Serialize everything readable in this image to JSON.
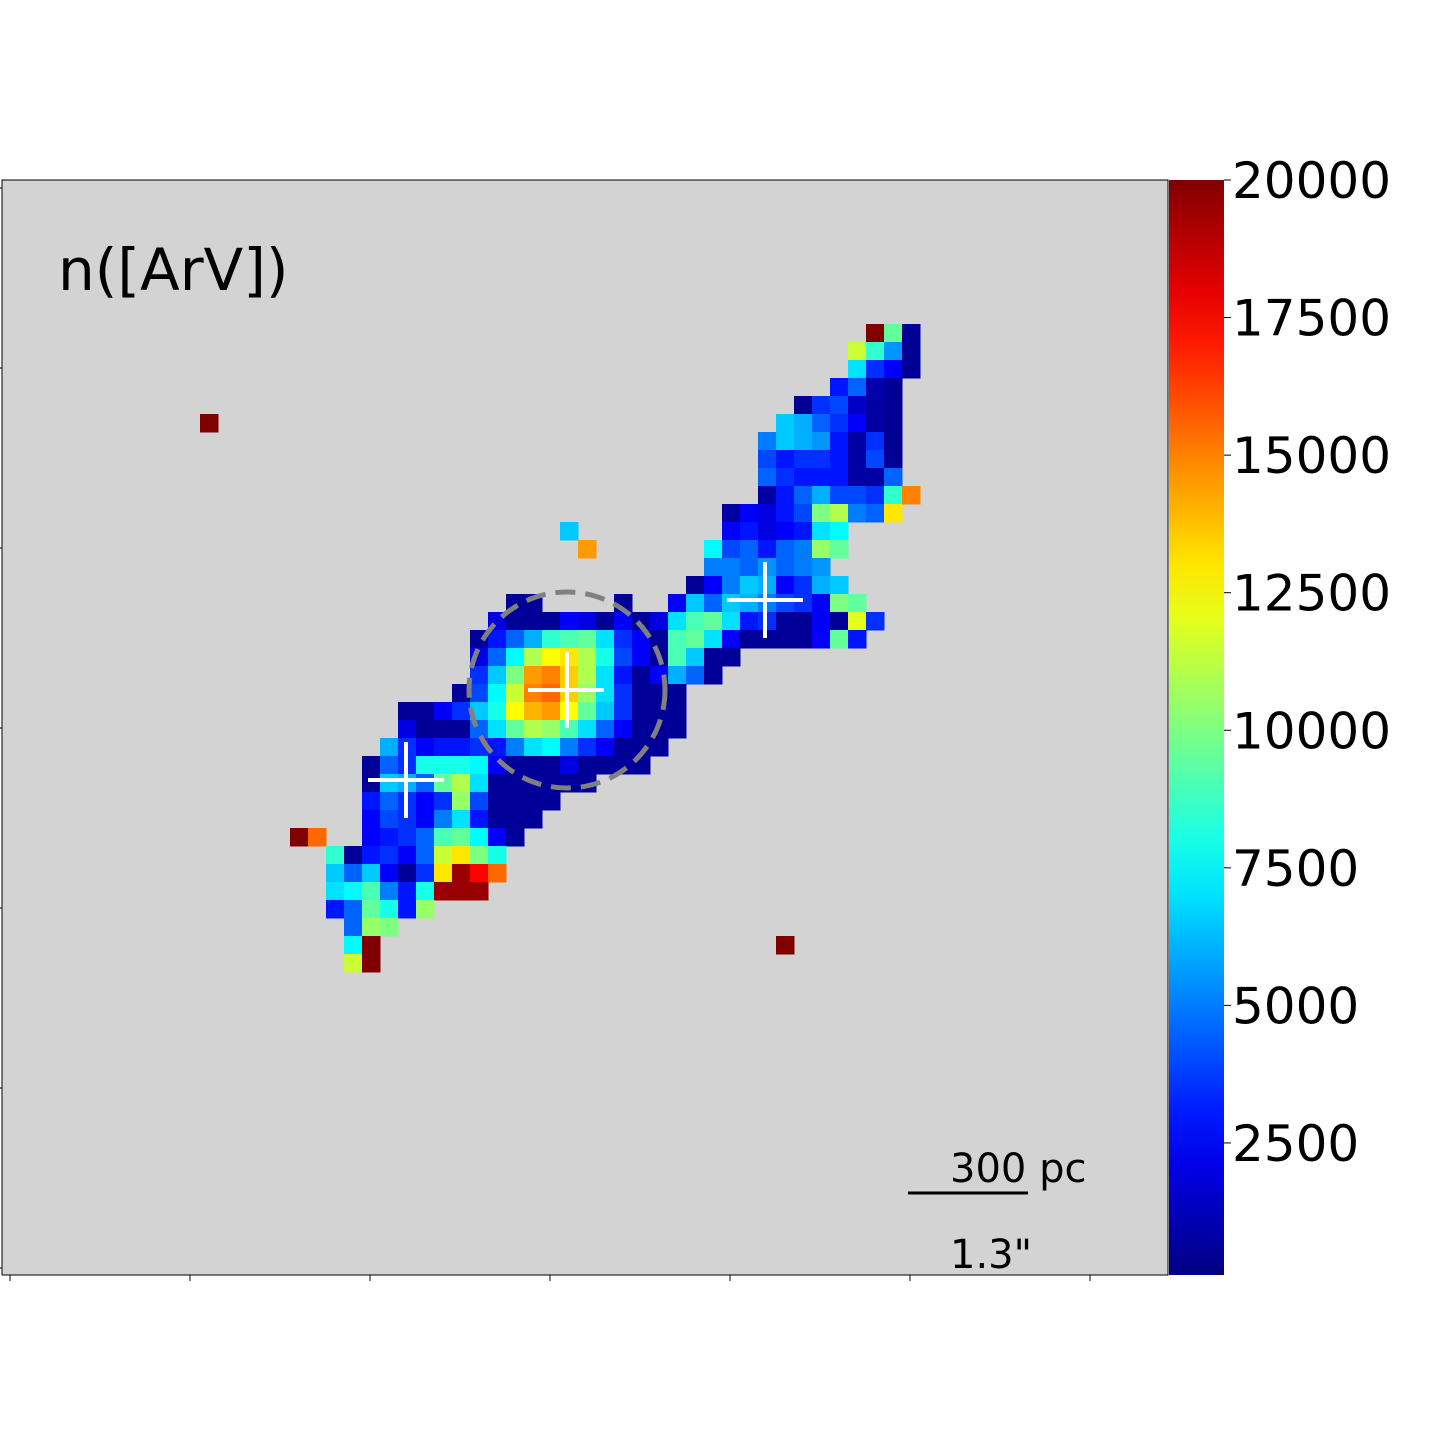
{
  "chart_data": {
    "type": "heatmap",
    "title": "n([ArV])",
    "colormap": "jet",
    "background": "#d3d3d3",
    "clim": [
      100,
      20000
    ],
    "cbar_ticks": [
      2500,
      5000,
      7500,
      10000,
      12500,
      15000,
      17500,
      20000
    ],
    "scale_bar": {
      "length": "300 pc",
      "angle": "1.3\""
    },
    "rows": [
      {
        "row": 8,
        "start": 48,
        "values": [
          20000,
          9500,
          500
        ]
      },
      {
        "row": 9,
        "start": 47,
        "values": [
          11500,
          8500,
          5500,
          500
        ]
      },
      {
        "row": 10,
        "start": 47,
        "values": [
          7000,
          3500,
          2500,
          500
        ]
      },
      {
        "row": 11,
        "start": 46,
        "values": [
          3000,
          4500,
          1000,
          500
        ]
      },
      {
        "row": 12,
        "start": 44,
        "values": [
          500,
          3500,
          4000,
          1500,
          800,
          500
        ]
      },
      {
        "row": 13,
        "start": 11,
        "values": [
          20000
        ]
      },
      {
        "row": 13,
        "start": 43,
        "values": [
          6500,
          6000,
          4500,
          3500,
          2500,
          800,
          500
        ]
      },
      {
        "row": 14,
        "start": 42,
        "values": [
          5000,
          6500,
          6000,
          5500,
          3000,
          800,
          3500,
          500
        ]
      },
      {
        "row": 15,
        "start": 42,
        "values": [
          4000,
          3000,
          3500,
          3500,
          3000,
          800,
          4000,
          500
        ]
      },
      {
        "row": 16,
        "start": 42,
        "values": [
          4500,
          3500,
          3000,
          3000,
          3000,
          800,
          800,
          4500
        ]
      },
      {
        "row": 17,
        "start": 42,
        "values": [
          800,
          3000,
          4500,
          6000,
          4000,
          4000,
          3500,
          8500,
          15000
        ]
      },
      {
        "row": 18,
        "start": 40,
        "values": [
          800,
          2500,
          2000,
          3000,
          4000,
          10000,
          11000,
          5000,
          4500,
          13000
        ]
      },
      {
        "row": 19,
        "start": 31,
        "values": [
          6500,
          null,
          null,
          null,
          null,
          null,
          null,
          null,
          null,
          2500,
          3000,
          2000,
          2500,
          3000,
          7000,
          7500
        ]
      },
      {
        "row": 20,
        "start": 32,
        "values": [
          14500,
          null,
          null,
          null,
          null,
          null,
          null,
          7500,
          4000,
          4500,
          3000,
          4500,
          5000,
          10500,
          9500
        ]
      },
      {
        "row": 21,
        "start": 39,
        "values": [
          5000,
          5000,
          4500,
          5500,
          4500,
          5000,
          5500
        ]
      },
      {
        "row": 22,
        "start": 38,
        "values": [
          600,
          2500,
          5000,
          6500,
          6000,
          2500,
          3500,
          6000,
          6500
        ]
      },
      {
        "row": 23,
        "start": 28,
        "values": [
          600,
          600,
          null,
          null,
          null,
          null,
          600,
          null,
          null,
          2500,
          6500,
          4500,
          6500,
          6000,
          5000,
          4000,
          3500,
          2500,
          10000,
          9500
        ]
      },
      {
        "row": 24,
        "start": 27,
        "values": [
          2000,
          600,
          600,
          600,
          2500,
          2000,
          600,
          2500,
          600,
          2000,
          7000,
          9000,
          9500,
          7000,
          3000,
          3500,
          600,
          600,
          2500,
          600,
          12000,
          3500
        ]
      },
      {
        "row": 25,
        "start": 26,
        "values": [
          600,
          3000,
          4500,
          6000,
          8500,
          9000,
          9500,
          7000,
          3500,
          2500,
          600,
          9000,
          9500,
          7000,
          2500,
          600,
          600,
          600,
          600,
          2500,
          9500,
          3000
        ]
      },
      {
        "row": 26,
        "start": 26,
        "values": [
          2000,
          4500,
          7500,
          11000,
          12500,
          13000,
          11000,
          8000,
          4000,
          2500,
          600,
          9000,
          6500,
          600,
          600
        ]
      },
      {
        "row": 27,
        "start": 26,
        "values": [
          3500,
          6500,
          10000,
          14500,
          15000,
          13500,
          11000,
          7000,
          3000,
          600,
          2500,
          6000,
          4500,
          600
        ]
      },
      {
        "row": 28,
        "start": 25,
        "values": [
          600,
          4000,
          7500,
          11500,
          15000,
          15500,
          13500,
          10500,
          7000,
          3500,
          600,
          600,
          600
        ]
      },
      {
        "row": 29,
        "start": 22,
        "values": [
          600,
          600,
          2500,
          3500,
          6500,
          8000,
          12500,
          14000,
          14500,
          12500,
          9500,
          6500,
          3500,
          600,
          600,
          600
        ]
      },
      {
        "row": 30,
        "start": 22,
        "values": [
          2000,
          600,
          600,
          600,
          4500,
          7000,
          9500,
          11000,
          10500,
          9000,
          7000,
          4500,
          2500,
          600,
          600,
          600
        ]
      },
      {
        "row": 31,
        "start": 21,
        "values": [
          6000,
          3500,
          2500,
          3000,
          3000,
          3500,
          3000,
          5000,
          7000,
          7500,
          5000,
          3500,
          2500,
          600,
          600,
          600
        ]
      },
      {
        "row": 32,
        "start": 20,
        "values": [
          600,
          4500,
          3500,
          8000,
          8000,
          8000,
          7500,
          2500,
          600,
          600,
          600,
          2000,
          600,
          600,
          600,
          600
        ]
      },
      {
        "row": 33,
        "start": 20,
        "values": [
          600,
          6500,
          6000,
          4500,
          9500,
          11000,
          7000,
          600,
          600,
          600,
          600,
          600,
          600
        ]
      },
      {
        "row": 34,
        "start": 20,
        "values": [
          3000,
          4500,
          3500,
          2500,
          3500,
          10500,
          4000,
          600,
          600,
          600,
          600
        ]
      },
      {
        "row": 35,
        "start": 20,
        "values": [
          2500,
          4000,
          3500,
          2500,
          5000,
          7000,
          3000,
          600,
          600,
          600
        ]
      },
      {
        "row": 36,
        "start": 16,
        "values": [
          20000,
          15500,
          null,
          null,
          2500,
          3000,
          3500,
          4500,
          9000,
          9500,
          7500,
          2500,
          600
        ]
      },
      {
        "row": 37,
        "start": 18,
        "values": [
          8500,
          600,
          3000,
          3500,
          2500,
          4500,
          11500,
          13000,
          10000,
          8000
        ]
      },
      {
        "row": 38,
        "start": 18,
        "values": [
          6500,
          4500,
          6500,
          2500,
          600,
          3500,
          13000,
          19500,
          17500,
          15500
        ]
      },
      {
        "row": 39,
        "start": 18,
        "values": [
          7000,
          7500,
          9000,
          5000,
          3000,
          8000,
          19500,
          19500,
          19500
        ]
      },
      {
        "row": 40,
        "start": 18,
        "values": [
          3000,
          4500,
          9500,
          8000,
          3000,
          10500
        ]
      },
      {
        "row": 41,
        "start": 19,
        "values": [
          4500,
          10500,
          10000
        ]
      },
      {
        "row": 42,
        "start": 19,
        "values": [
          7500,
          20000
        ]
      },
      {
        "row": 42,
        "start": 43,
        "values": [
          20000
        ]
      },
      {
        "row": 43,
        "start": 19,
        "values": [
          11500,
          20000
        ]
      }
    ]
  }
}
